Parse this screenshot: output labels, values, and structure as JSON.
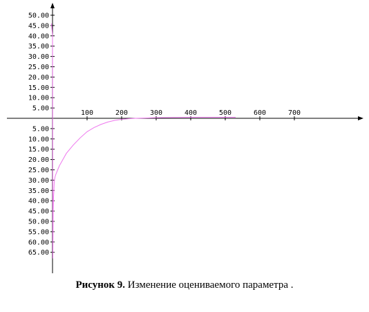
{
  "chart_data": {
    "type": "line",
    "title": "",
    "xlabel": "",
    "ylabel": "",
    "xlim": [
      -10,
      770
    ],
    "ylim": [
      -70,
      52
    ],
    "x_ticks": [
      100,
      200,
      300,
      400,
      500,
      600,
      700
    ],
    "x_tick_labels": [
      "100",
      "200",
      "300",
      "400",
      "500",
      "600",
      "700"
    ],
    "y_ticks": [
      50,
      45,
      40,
      35,
      30,
      25,
      20,
      15,
      10,
      5,
      -5,
      -10,
      -15,
      -20,
      -25,
      -30,
      -35,
      -40,
      -45,
      -50,
      -55,
      -60,
      -65
    ],
    "y_tick_labels": [
      "50.00",
      "45.00",
      "40.00",
      "35.00",
      "30.00",
      "25.00",
      "20.00",
      "15.00",
      "10.00",
      "5.00",
      "5.00",
      "10.00",
      "15.00",
      "20.00",
      "25.00",
      "30.00",
      "35.00",
      "40.00",
      "45.00",
      "50.00",
      "55.00",
      "60.00",
      "65.00"
    ],
    "grid": false,
    "line_color": "#ee77ee",
    "series": [
      {
        "x": [
          -3,
          -2,
          -1,
          0,
          0.5,
          1,
          1.5,
          2,
          3,
          4,
          5,
          6,
          8,
          10,
          15,
          20,
          30,
          40,
          60,
          80,
          100,
          120,
          140,
          160,
          180,
          200,
          220,
          240,
          260,
          300,
          350,
          400,
          450,
          500,
          530
        ],
        "y": [
          46,
          44,
          42,
          40,
          -10,
          -68,
          -55,
          -45,
          -38,
          -35,
          -31,
          -29.5,
          -28,
          -27,
          -25,
          -23,
          -20,
          -17,
          -13,
          -9.5,
          -6.5,
          -4.5,
          -3,
          -1.8,
          -1,
          -0.5,
          -0.2,
          0,
          0.1,
          0.3,
          0.4,
          0.5,
          0.5,
          0.5,
          0.5
        ]
      }
    ]
  },
  "caption": {
    "label": "Рисунок 9.",
    "text": " Изменение оцениваемого параметра ."
  }
}
